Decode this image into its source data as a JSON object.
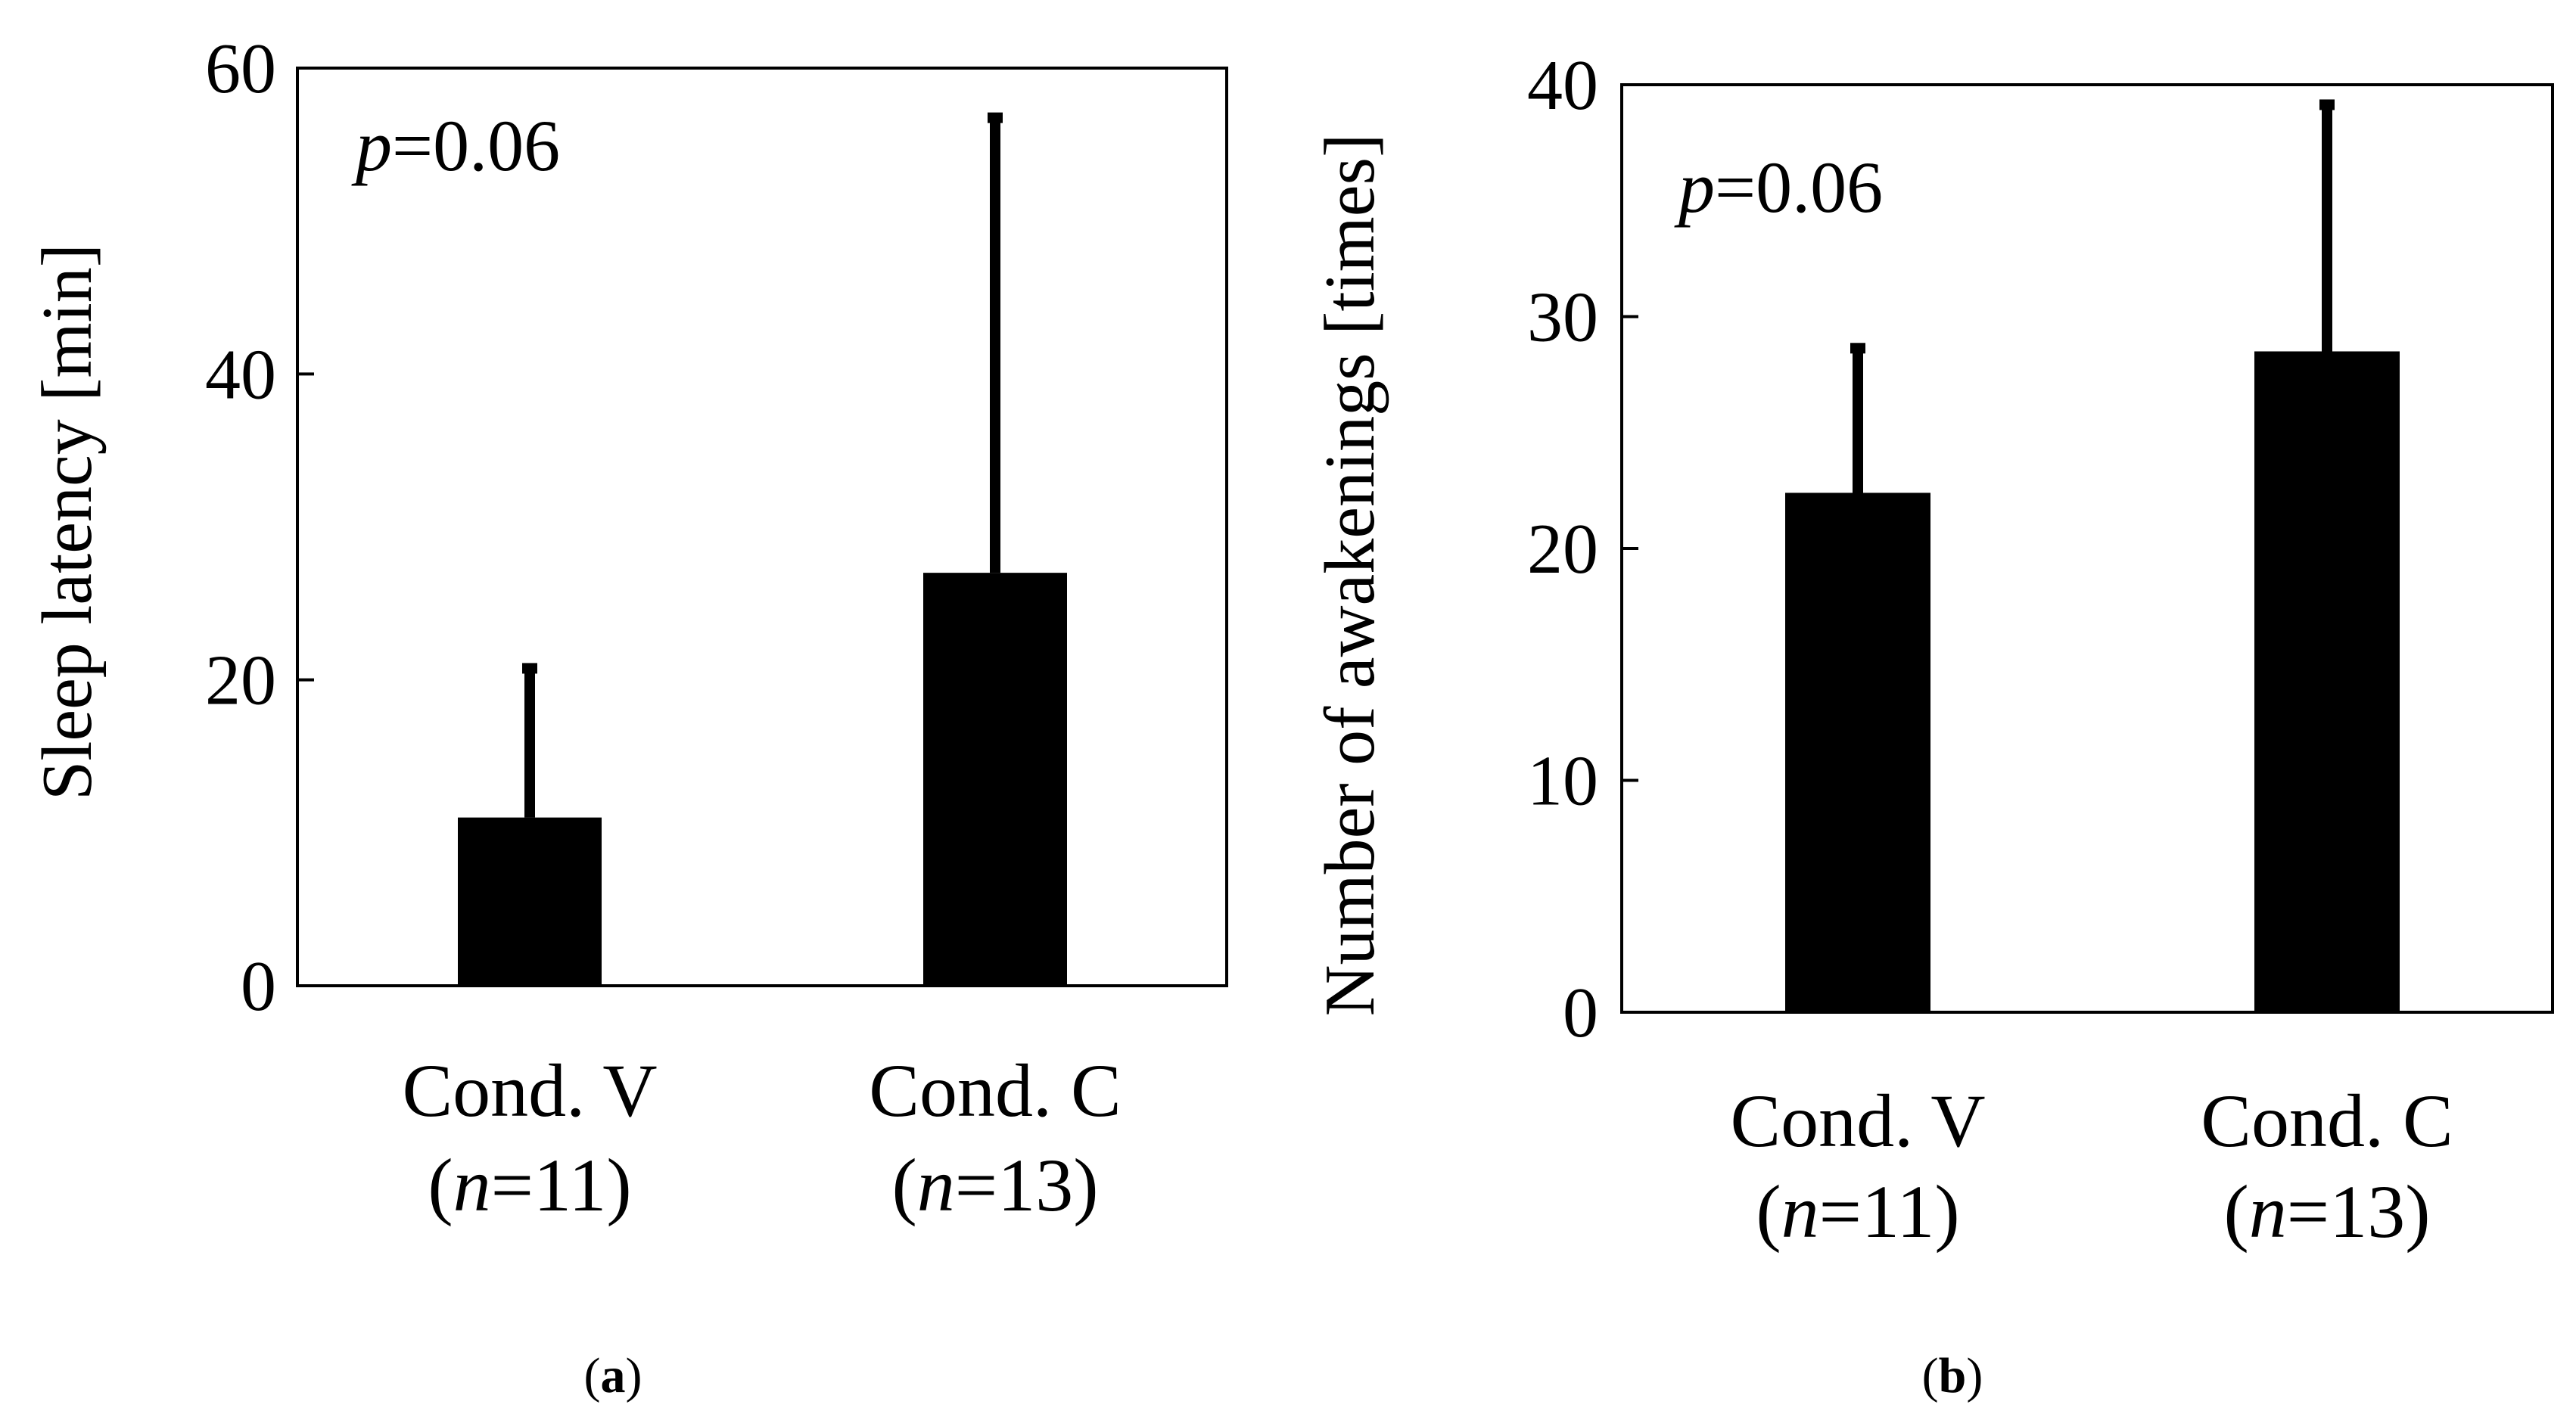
{
  "colors": {
    "bar": "#000000",
    "axis": "#000000",
    "background": "#ffffff"
  },
  "chart_data": [
    {
      "type": "bar",
      "panel_label": "a",
      "annotation": {
        "prefix": "p",
        "value": "=0.06"
      },
      "ylabel": "Sleep latency  [min]",
      "ylim": [
        0,
        60
      ],
      "yticks": [
        0,
        20,
        40,
        60
      ],
      "grid": false,
      "categories": [
        {
          "label": "Cond. V",
          "n_prefix": "(",
          "n_var": "n",
          "n_value": "=11)"
        },
        {
          "label": "Cond. C",
          "n_prefix": "(",
          "n_var": "n",
          "n_value": "=13)"
        }
      ],
      "values": [
        11,
        27
      ],
      "error_upper": [
        21,
        57
      ]
    },
    {
      "type": "bar",
      "panel_label": "b",
      "annotation": {
        "prefix": "p",
        "value": "=0.06"
      },
      "ylabel": "Number of awakenings  [times]",
      "ylim": [
        0,
        40
      ],
      "yticks": [
        0,
        10,
        20,
        30,
        40
      ],
      "grid": false,
      "categories": [
        {
          "label": "Cond. V",
          "n_prefix": "(",
          "n_var": "n",
          "n_value": "=11)"
        },
        {
          "label": "Cond. C",
          "n_prefix": "(",
          "n_var": "n",
          "n_value": "=13)"
        }
      ],
      "values": [
        22.4,
        28.5
      ],
      "error_upper": [
        28.8,
        39.3
      ]
    }
  ]
}
